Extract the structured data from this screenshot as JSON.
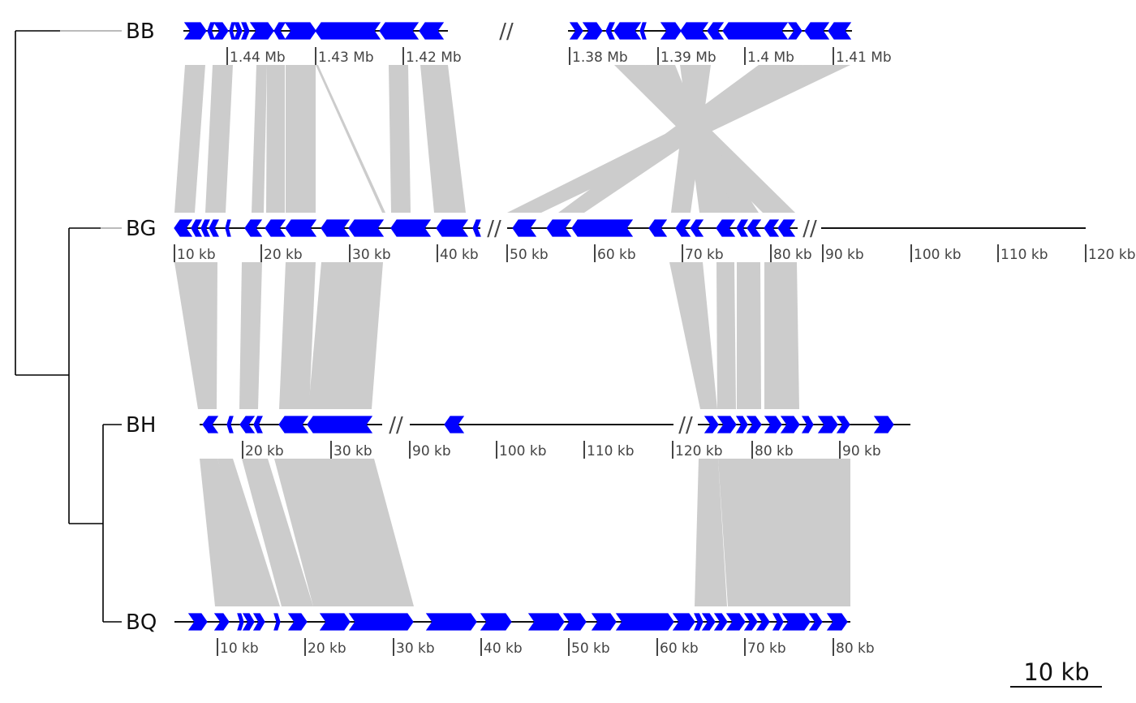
{
  "colors": {
    "gene": "#0000ff",
    "link": "#cccccc",
    "backbone": "#111111",
    "tree": "#000000",
    "tree_stub": "#bbbbbb",
    "tick": "#444444"
  },
  "tree": {
    "tips": [
      "BB",
      "BG",
      "BH",
      "BQ"
    ]
  },
  "tracks": [
    {
      "name": "BB",
      "ticks": [
        "1.44 Mb",
        "1.43 Mb",
        "1.42 Mb",
        "1.38 Mb",
        "1.39 Mb",
        "1.4 Mb",
        "1.41 Mb"
      ]
    },
    {
      "name": "BG",
      "ticks": [
        "10 kb",
        "20 kb",
        "30 kb",
        "40 kb",
        "50 kb",
        "60 kb",
        "70 kb",
        "80 kb",
        "90 kb",
        "100 kb",
        "110 kb",
        "120 kb"
      ]
    },
    {
      "name": "BH",
      "ticks": [
        "20 kb",
        "30 kb",
        "90 kb",
        "100 kb",
        "110 kb",
        "120 kb",
        "80 kb",
        "90 kb"
      ]
    },
    {
      "name": "BQ",
      "ticks": [
        "10 kb",
        "20 kb",
        "30 kb",
        "40 kb",
        "50 kb",
        "60 kb",
        "70 kb",
        "80 kb"
      ]
    }
  ],
  "scale_bar": {
    "label": "10 kb"
  }
}
